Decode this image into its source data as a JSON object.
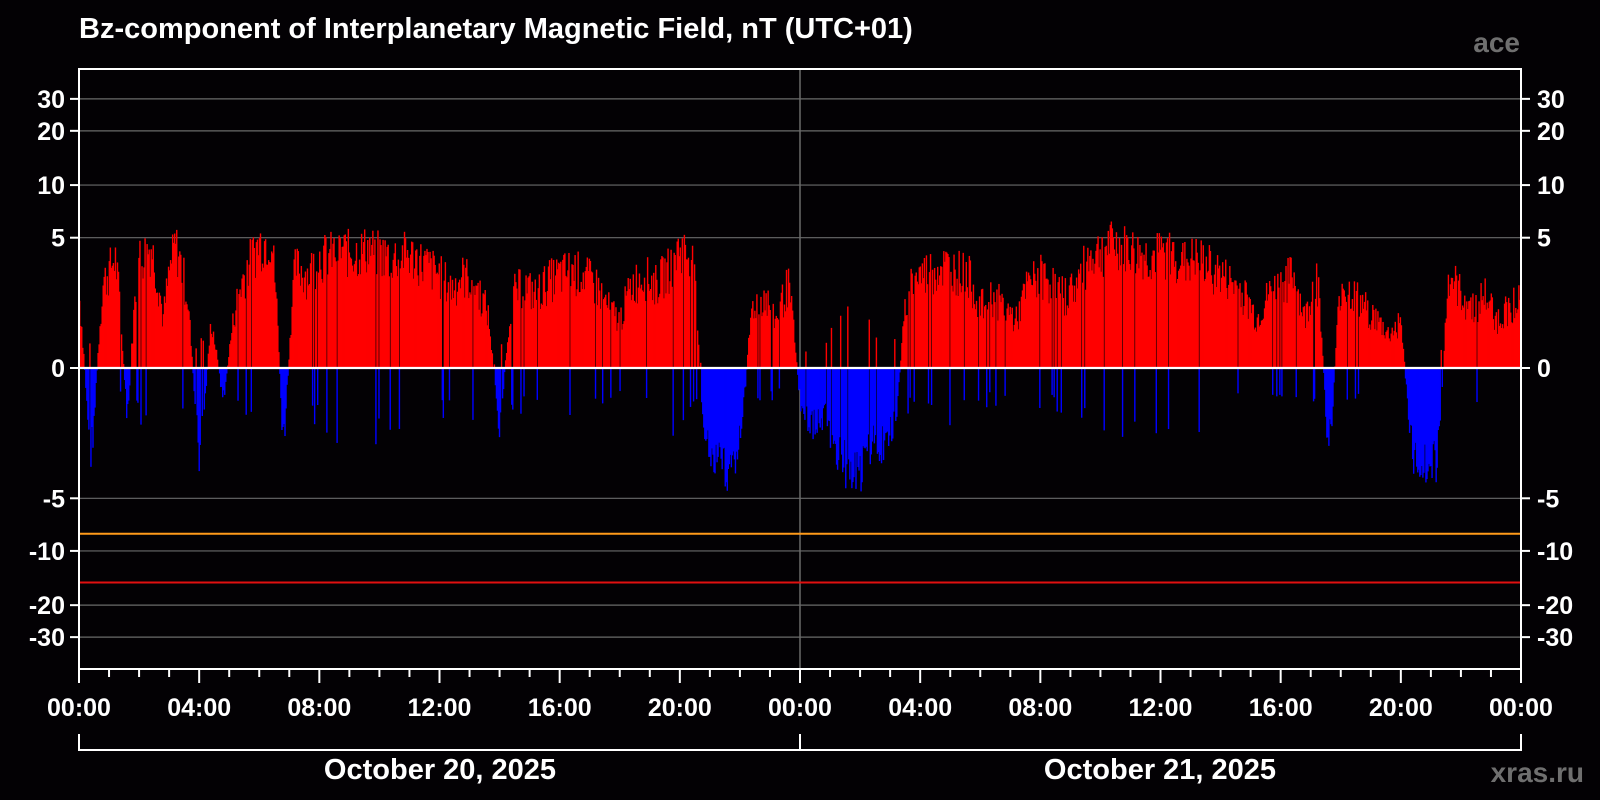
{
  "chart_data": {
    "type": "bar",
    "title": "Bz-component of Interplanetary Magnetic Field, nT (UTC+01)",
    "source_label": "ace",
    "site_label": "xras.ru",
    "y_scale": "asinh",
    "ylim": [
      -40,
      40
    ],
    "yticks": [
      -30,
      -20,
      -10,
      -5,
      0,
      5,
      10,
      20,
      30
    ],
    "y_tick_labels": [
      "-30",
      "-20",
      "-10",
      "-5",
      "0",
      "5",
      "10",
      "20",
      "30"
    ],
    "x_range_hours": [
      0,
      48
    ],
    "x_tick_labels": [
      "00:00",
      "04:00",
      "08:00",
      "12:00",
      "16:00",
      "20:00",
      "00:00",
      "04:00",
      "08:00",
      "12:00",
      "16:00",
      "20:00",
      "00:00"
    ],
    "dates": [
      "October 20, 2025",
      "October 21, 2025"
    ],
    "grid": true,
    "reference_lines": [
      {
        "value": -8,
        "color": "#ff9a1a"
      },
      {
        "value": -15,
        "color": "#e01010"
      }
    ],
    "colors": {
      "positive": "#ff0000",
      "negative": "#0000ff",
      "axis": "#ffffff",
      "grid": "#6a6a6a",
      "background": "#030104"
    },
    "profile_hours": [
      0,
      0.4,
      0.8,
      1.2,
      1.6,
      2.0,
      2.4,
      2.8,
      3.2,
      3.6,
      4.0,
      4.4,
      4.8,
      5.2,
      5.6,
      6.0,
      6.4,
      6.8,
      7.2,
      7.6,
      8.0,
      8.4,
      8.8,
      9.2,
      9.6,
      10.0,
      10.4,
      10.8,
      11.2,
      11.6,
      12.0,
      12.4,
      12.8,
      13.2,
      13.6,
      14.0,
      14.4,
      14.8,
      15.2,
      15.6,
      16.0,
      16.4,
      16.8,
      17.2,
      17.6,
      18.0,
      18.4,
      18.8,
      19.2,
      19.6,
      20.0,
      20.4,
      20.8,
      21.2,
      21.6,
      22.0,
      22.4,
      22.8,
      23.2,
      23.6,
      24.0,
      24.4,
      24.8,
      25.2,
      25.6,
      26.0,
      26.4,
      26.8,
      27.2,
      27.6,
      28.0,
      28.4,
      28.8,
      29.2,
      29.6,
      30.0,
      30.4,
      30.8,
      31.2,
      31.6,
      32.0,
      32.4,
      32.8,
      33.2,
      33.6,
      34.0,
      34.4,
      34.8,
      35.2,
      35.6,
      36.0,
      36.4,
      36.8,
      37.2,
      37.6,
      38.0,
      38.4,
      38.8,
      39.2,
      39.6,
      40.0,
      40.4,
      40.8,
      41.2,
      41.6,
      42.0,
      42.4,
      42.8,
      43.2,
      43.6,
      44.0,
      44.4,
      44.8,
      45.2,
      45.6,
      46.0,
      46.4,
      46.8,
      47.2,
      47.6,
      48.0
    ],
    "profile_bz": [
      2.5,
      -3.0,
      3.0,
      4.5,
      -1.8,
      4.5,
      5.2,
      1.5,
      5.5,
      2.5,
      -3.2,
      1.5,
      -1.0,
      2.0,
      4.0,
      5.5,
      5.8,
      -2.8,
      4.0,
      3.5,
      4.5,
      4.8,
      5.0,
      4.8,
      5.2,
      4.8,
      4.5,
      4.8,
      4.5,
      4.0,
      3.5,
      2.8,
      3.5,
      3.0,
      1.8,
      -2.0,
      2.5,
      3.0,
      2.5,
      3.2,
      3.5,
      3.8,
      3.5,
      3.0,
      2.0,
      1.5,
      3.0,
      3.5,
      3.0,
      3.8,
      5.2,
      4.5,
      -2.5,
      -3.5,
      -4.0,
      -2.5,
      2.0,
      2.5,
      1.5,
      3.0,
      -1.0,
      -2.0,
      -1.5,
      -3.0,
      -4.0,
      -4.2,
      -2.5,
      -3.0,
      -1.5,
      3.0,
      3.5,
      3.8,
      4.0,
      3.8,
      3.5,
      2.0,
      2.5,
      2.0,
      1.5,
      3.0,
      3.5,
      3.0,
      2.5,
      3.0,
      4.5,
      5.0,
      5.5,
      5.2,
      4.8,
      4.5,
      4.8,
      4.8,
      4.2,
      4.5,
      4.0,
      3.5,
      3.0,
      2.5,
      1.5,
      2.5,
      3.0,
      3.5,
      1.5,
      3.5,
      -3.0,
      3.0,
      2.5,
      2.0,
      1.5,
      1.0,
      1.5,
      -3.2,
      -3.5,
      -3.8,
      3.5,
      2.5,
      2.0,
      2.5,
      1.5,
      2.0,
      2.5
    ]
  }
}
